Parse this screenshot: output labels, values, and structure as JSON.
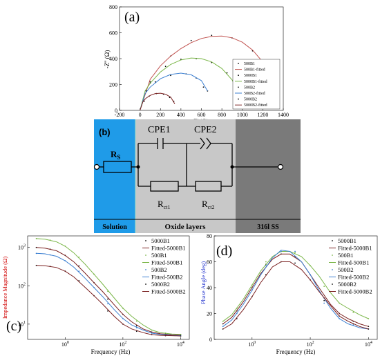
{
  "chart_data": [
    {
      "type": "scatter",
      "panel_label": "(a)",
      "xlabel": "Z' (Ω)",
      "ylabel": "-Z'' (Ω)",
      "xlim": [
        -200,
        1400
      ],
      "ylim": [
        0,
        800
      ],
      "xticks": [
        "-200",
        "0",
        "200",
        "400",
        "600",
        "800",
        "1000",
        "1200",
        "1400"
      ],
      "yticks": [
        "0",
        "200",
        "400",
        "600",
        "800"
      ],
      "series": [
        {
          "name": "500B1",
          "kind": "points",
          "color": "#000000",
          "x": [
            100,
            300,
            500,
            700,
            900,
            1100,
            1250,
            1330
          ],
          "y": [
            210,
            420,
            540,
            580,
            560,
            460,
            350,
            260
          ]
        },
        {
          "name": "500B1-fitted",
          "kind": "line",
          "color": "#c0504d",
          "x": [
            0,
            100,
            200,
            300,
            400,
            500,
            600,
            700,
            800,
            900,
            1000,
            1100,
            1200,
            1300,
            1360
          ],
          "y": [
            0,
            240,
            345,
            420,
            478,
            524,
            556,
            572,
            575,
            561,
            527,
            466,
            374,
            234,
            40
          ]
        },
        {
          "name": "5000B1",
          "kind": "points",
          "color": "#000000",
          "x": [
            100,
            250,
            400,
            550,
            700,
            850,
            950
          ],
          "y": [
            220,
            340,
            395,
            400,
            370,
            290,
            210
          ]
        },
        {
          "name": "5000B1-fitted",
          "kind": "line",
          "color": "#7ab648",
          "x": [
            0,
            50,
            100,
            200,
            300,
            400,
            500,
            600,
            700,
            800,
            900,
            960
          ],
          "y": [
            0,
            150,
            210,
            297,
            355,
            390,
            405,
            400,
            375,
            324,
            236,
            150
          ]
        },
        {
          "name": "500B2",
          "kind": "points",
          "color": "#000000",
          "x": [
            60,
            150,
            300,
            450,
            550,
            620,
            660
          ],
          "y": [
            150,
            220,
            270,
            282,
            250,
            180,
            150
          ]
        },
        {
          "name": "500B2-fitted",
          "kind": "line",
          "color": "#3b7fd1",
          "x": [
            0,
            50,
            100,
            200,
            300,
            400,
            500,
            600,
            660
          ],
          "y": [
            0,
            130,
            180,
            245,
            278,
            288,
            275,
            230,
            150
          ]
        },
        {
          "name": "5000B2",
          "kind": "points",
          "color": "#000000",
          "x": [
            40,
            90,
            160,
            230,
            290,
            330
          ],
          "y": [
            70,
            110,
            130,
            125,
            100,
            70
          ]
        },
        {
          "name": "5000B2-fitted",
          "kind": "line",
          "color": "#7a1f1f",
          "x": [
            0,
            30,
            60,
            100,
            150,
            200,
            250,
            300,
            340
          ],
          "y": [
            0,
            70,
            95,
            116,
            130,
            133,
            125,
            102,
            50
          ]
        }
      ]
    },
    {
      "type": "diagram",
      "panel_label": "(b)",
      "labels": {
        "rs": "R",
        "rs_sub": "S",
        "cpe1": "CPE1",
        "cpe2": "CPE2",
        "rct1": "R",
        "rct1_sub": "ct1",
        "rct2": "R",
        "rct2_sub": "ct2",
        "region_solution": "Solution",
        "region_oxide": "Oxide layers",
        "region_steel": "316l SS"
      },
      "colors": {
        "solution": "#1f9be8",
        "oxide": "#c8c8c8",
        "steel": "#7a7a7a"
      }
    },
    {
      "type": "line",
      "panel_label": "(c)",
      "xlabel": "Frequency (Hz)",
      "ylabel": "Impedance Magnitude (Ω)",
      "xscale": "log",
      "yscale": "log",
      "xlim": [
        0.05,
        20000
      ],
      "ylim": [
        4,
        2000
      ],
      "xticks": [
        "10^0",
        "10^2",
        "10^4"
      ],
      "yticks": [
        "10^1",
        "10^2",
        "10^3"
      ],
      "series": [
        {
          "name": "5000B1",
          "kind": "points",
          "color": "#000000",
          "x": [
            0.1,
            0.3,
            1,
            3,
            10,
            30,
            100,
            300,
            1000,
            3000,
            10000
          ],
          "y": [
            1000,
            900,
            620,
            330,
            120,
            45,
            18,
            9,
            6.2,
            5.5,
            5.2
          ]
        },
        {
          "name": "Fitted-5000B1",
          "kind": "line",
          "color": "#7a1f1f",
          "x": [
            0.1,
            0.2,
            0.5,
            1,
            2,
            5,
            10,
            20,
            50,
            100,
            200,
            500,
            1000,
            2000,
            5000,
            10000
          ],
          "y": [
            1000,
            960,
            820,
            620,
            420,
            210,
            120,
            70,
            32,
            18,
            11.5,
            7.5,
            6.2,
            5.6,
            5.3,
            5.2
          ]
        },
        {
          "name": "500B1",
          "kind": "points",
          "color": "#7ab648",
          "x": [
            0.1,
            0.3,
            1,
            3,
            10,
            30,
            100,
            300,
            1000,
            3000,
            10000
          ],
          "y": [
            1700,
            1550,
            1080,
            560,
            200,
            72,
            26,
            12,
            7,
            5.8,
            5.4
          ]
        },
        {
          "name": "Fitted-500B1",
          "kind": "line",
          "color": "#7ab648",
          "x": [
            0.1,
            0.2,
            0.5,
            1,
            2,
            5,
            10,
            20,
            50,
            100,
            200,
            500,
            1000,
            2000,
            5000,
            10000
          ],
          "y": [
            1700,
            1640,
            1400,
            1080,
            720,
            360,
            200,
            110,
            48,
            26,
            16,
            9.5,
            7,
            6,
            5.5,
            5.4
          ]
        },
        {
          "name": "500B2",
          "kind": "points",
          "color": "#3b7fd1",
          "x": [
            0.1,
            0.3,
            1,
            3,
            10,
            30,
            100,
            300,
            1000,
            3000,
            10000
          ],
          "y": [
            700,
            640,
            450,
            240,
            90,
            34,
            14,
            8,
            5.8,
            5.2,
            5.0
          ]
        },
        {
          "name": "Fitted-500B2",
          "kind": "line",
          "color": "#3b7fd1",
          "x": [
            0.1,
            0.2,
            0.5,
            1,
            2,
            5,
            10,
            20,
            50,
            100,
            200,
            500,
            1000,
            2000,
            5000,
            10000
          ],
          "y": [
            700,
            680,
            590,
            450,
            305,
            155,
            90,
            52,
            24,
            14,
            9.5,
            7,
            5.8,
            5.4,
            5.1,
            5.0
          ]
        },
        {
          "name": "5000B2",
          "kind": "points",
          "color": "#000000",
          "x": [
            0.1,
            0.3,
            1,
            3,
            10,
            30,
            100,
            300,
            1000,
            3000,
            10000
          ],
          "y": [
            340,
            320,
            240,
            135,
            55,
            22,
            10,
            6.5,
            5.3,
            5.0,
            4.9
          ]
        },
        {
          "name": "Fitted-5000B2",
          "kind": "line",
          "color": "#7a1f1f",
          "x": [
            0.1,
            0.2,
            0.5,
            1,
            2,
            5,
            10,
            20,
            50,
            100,
            200,
            500,
            1000,
            2000,
            5000,
            10000
          ],
          "y": [
            340,
            332,
            300,
            240,
            170,
            90,
            55,
            33,
            16,
            10,
            7.5,
            6,
            5.3,
            5.1,
            5.0,
            4.9
          ]
        }
      ]
    },
    {
      "type": "line",
      "panel_label": "(d)",
      "xlabel": "Frequency (Hz)",
      "ylabel": "Phase Angle (deg)",
      "xscale": "log",
      "xlim": [
        0.05,
        20000
      ],
      "ylim": [
        0,
        80
      ],
      "xticks": [
        "10^0",
        "10^2",
        "10^4"
      ],
      "yticks": [
        "0",
        "20",
        "40",
        "60",
        "80"
      ],
      "series": [
        {
          "name": "5000B1",
          "kind": "points",
          "color": "#000000",
          "x": [
            0.1,
            0.3,
            1,
            3,
            10,
            30,
            100,
            300,
            1000,
            3000,
            10000
          ],
          "y": [
            12,
            22,
            40,
            58,
            66,
            64,
            50,
            32,
            20,
            14,
            10
          ]
        },
        {
          "name": "Fitted-5000B1",
          "kind": "line",
          "color": "#7a1f1f",
          "x": [
            0.1,
            0.2,
            0.5,
            1,
            2,
            5,
            10,
            20,
            50,
            100,
            200,
            500,
            1000,
            2000,
            5000,
            10000
          ],
          "y": [
            12,
            17,
            29,
            40,
            51,
            62,
            66,
            66,
            60,
            50,
            40,
            27,
            20,
            16,
            12,
            10
          ]
        },
        {
          "name": "500B1",
          "kind": "points",
          "color": "#7ab648",
          "x": [
            0.1,
            0.3,
            1,
            3,
            10,
            30,
            100,
            300,
            1000,
            3000,
            10000
          ],
          "y": [
            14,
            24,
            42,
            60,
            68,
            67,
            57,
            41,
            28,
            21,
            16
          ]
        },
        {
          "name": "Fitted-500B1",
          "kind": "line",
          "color": "#7ab648",
          "x": [
            0.1,
            0.2,
            0.5,
            1,
            2,
            5,
            10,
            20,
            50,
            100,
            200,
            500,
            1000,
            2000,
            5000,
            10000
          ],
          "y": [
            14,
            19,
            31,
            42,
            53,
            64,
            68,
            68,
            64,
            57,
            49,
            36,
            28,
            24,
            19,
            16
          ]
        },
        {
          "name": "500B2",
          "kind": "points",
          "color": "#3b7fd1",
          "x": [
            0.1,
            0.3,
            1,
            3,
            10,
            30,
            100,
            300,
            1000,
            3000,
            10000
          ],
          "y": [
            10,
            20,
            38,
            57,
            68,
            68,
            50,
            28,
            16,
            11,
            8
          ]
        },
        {
          "name": "Fitted-500B2",
          "kind": "line",
          "color": "#3b7fd1",
          "x": [
            0.1,
            0.2,
            0.5,
            1,
            2,
            5,
            10,
            20,
            50,
            100,
            200,
            500,
            1000,
            2000,
            5000,
            10000
          ],
          "y": [
            10,
            15,
            27,
            38,
            50,
            63,
            69,
            68,
            60,
            50,
            38,
            24,
            16,
            12,
            9,
            8
          ]
        },
        {
          "name": "5000B2",
          "kind": "points",
          "color": "#000000",
          "x": [
            0.1,
            0.3,
            1,
            3,
            10,
            30,
            100,
            300,
            1000,
            3000,
            10000
          ],
          "y": [
            8,
            16,
            33,
            50,
            60,
            59,
            46,
            30,
            18,
            12,
            8
          ]
        },
        {
          "name": "Fitted-5000B2",
          "kind": "line",
          "color": "#7a1f1f",
          "x": [
            0.1,
            0.2,
            0.5,
            1,
            2,
            5,
            10,
            20,
            50,
            100,
            200,
            500,
            1000,
            2000,
            5000,
            10000
          ],
          "y": [
            8,
            12,
            23,
            33,
            44,
            56,
            60,
            60,
            54,
            46,
            37,
            26,
            18,
            14,
            10,
            8
          ]
        }
      ]
    }
  ]
}
